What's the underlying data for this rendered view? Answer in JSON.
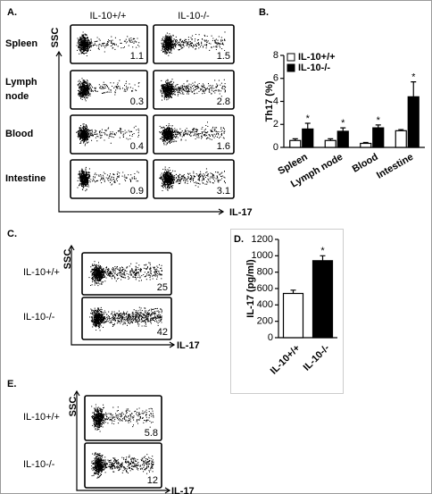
{
  "chart_data": [
    {
      "type": "bar",
      "panel": "B.",
      "y_label": "Th17 (%)",
      "categories": [
        "Spleen",
        "Lymph node",
        "Blood",
        "Intestine"
      ],
      "series": [
        {
          "name": "IL-10+/+",
          "color": "#ffffff",
          "values": [
            0.6,
            0.6,
            0.35,
            1.45
          ],
          "errors": [
            0.15,
            0.15,
            0.08,
            0.1
          ]
        },
        {
          "name": "IL-10-/-",
          "color": "#000000",
          "values": [
            1.6,
            1.4,
            1.7,
            4.4
          ],
          "errors": [
            0.5,
            0.3,
            0.25,
            1.3
          ]
        }
      ],
      "annotations": [
        "*",
        "*",
        "*",
        "*"
      ],
      "ylim": [
        0,
        8
      ],
      "yticks": [
        0,
        2,
        4,
        6,
        8
      ],
      "legend": "upper left"
    },
    {
      "type": "bar",
      "panel": "D.",
      "y_label": "IL-17 (pg/ml)",
      "categories": [
        "IL-10+/+",
        "IL-10-/-"
      ],
      "values": [
        540,
        940
      ],
      "colors": [
        "#ffffff",
        "#000000"
      ],
      "errors": [
        40,
        60
      ],
      "annotations": [
        null,
        "*"
      ],
      "ylim": [
        0,
        1200
      ],
      "yticks": [
        0,
        200,
        400,
        600,
        800,
        1000,
        1200
      ]
    }
  ],
  "panels": {
    "a": {
      "label": "A.",
      "columns": [
        "IL-10+/+",
        "IL-10-/-"
      ],
      "y_axis": "SSC",
      "x_axis": "IL-17",
      "rows": [
        {
          "lines": [
            "Spleen"
          ],
          "values": [
            1.1,
            1.5
          ]
        },
        {
          "lines": [
            "Lymph",
            "node"
          ],
          "values": [
            0.3,
            2.8
          ]
        },
        {
          "lines": [
            "Blood"
          ],
          "values": [
            0.4,
            1.6
          ]
        },
        {
          "lines": [
            "Intestine"
          ],
          "values": [
            0.9,
            3.1
          ]
        }
      ]
    },
    "c": {
      "label": "C.",
      "y_axis": "SSC",
      "x_axis": "IL-17",
      "rows": [
        {
          "name": "IL-10+/+",
          "value": 25
        },
        {
          "name": "IL-10-/-",
          "value": 42
        }
      ]
    },
    "e": {
      "label": "E.",
      "y_axis": "SSC",
      "x_axis": "IL-17",
      "rows": [
        {
          "name": "IL-10+/+",
          "value": 5.8
        },
        {
          "name": "IL-10-/-",
          "value": 12
        }
      ]
    }
  }
}
